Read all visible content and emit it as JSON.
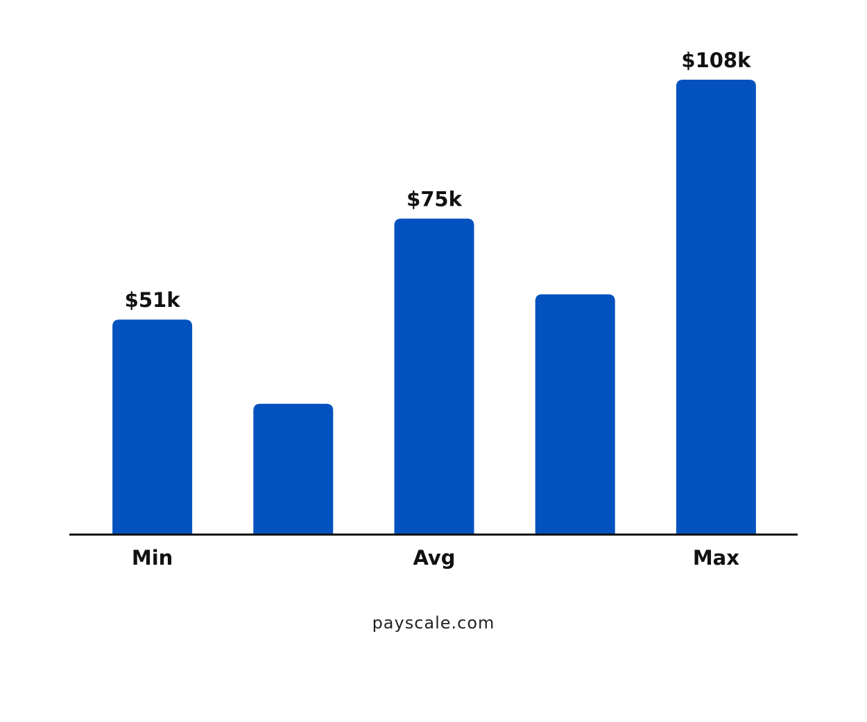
{
  "chart_data": {
    "type": "bar",
    "categories": [
      "Min",
      null,
      "Avg",
      null,
      "Max"
    ],
    "values": [
      51,
      31,
      75,
      57,
      108
    ],
    "value_labels": [
      "$51k",
      null,
      "$75k",
      null,
      "$108k"
    ],
    "color": "#0452c0",
    "source": "payscale.com"
  }
}
